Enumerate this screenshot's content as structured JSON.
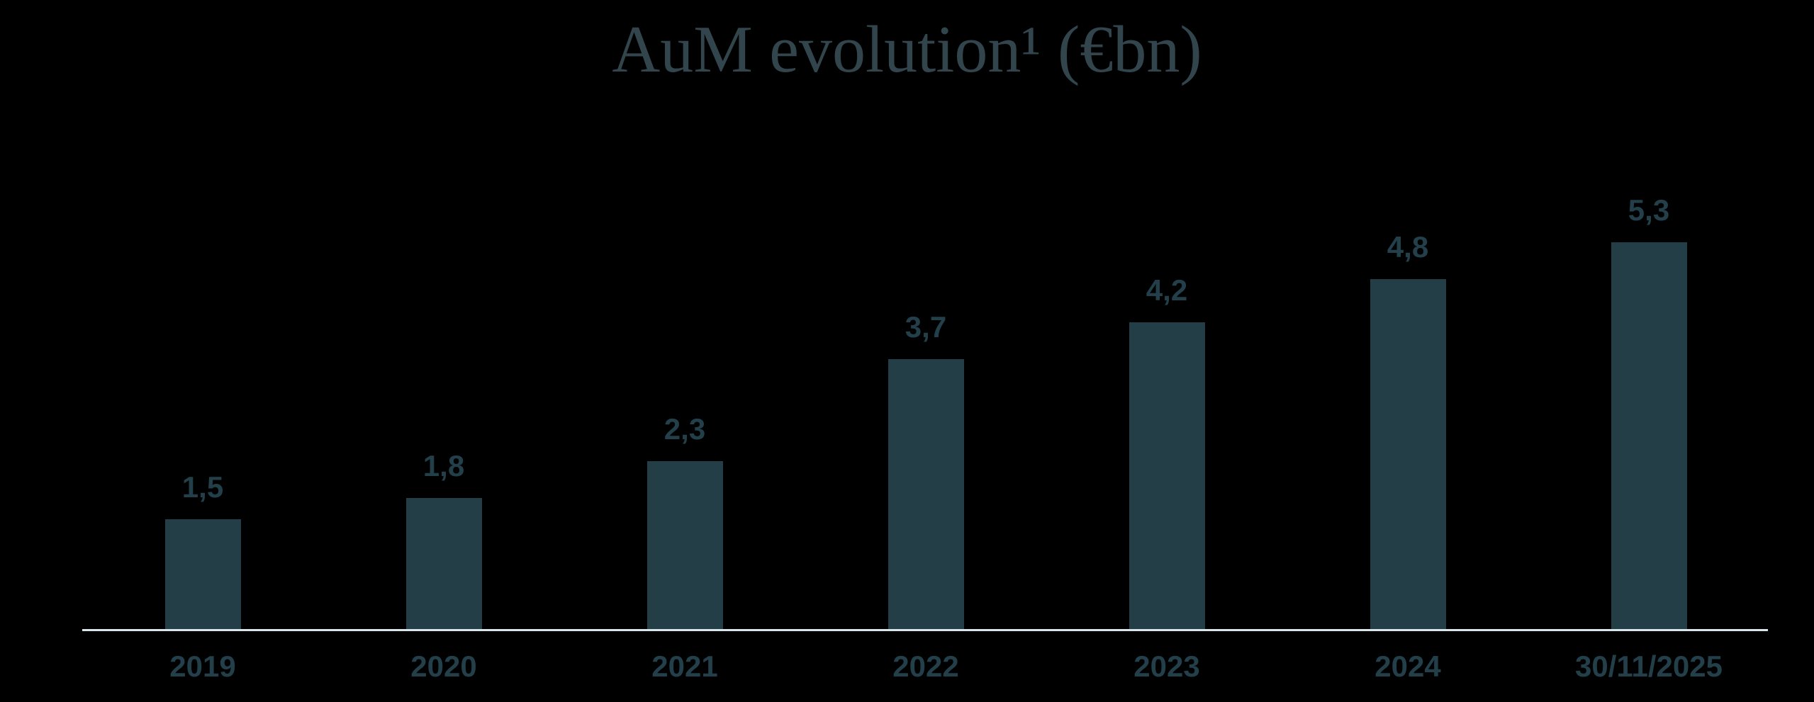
{
  "chart_data": {
    "type": "bar",
    "title": "AuM evolution¹ (€bn)",
    "xlabel": "",
    "ylabel": "",
    "unit": "€bn",
    "decimal_separator": ",",
    "categories": [
      "2019",
      "2020",
      "2021",
      "2022",
      "2023",
      "2024",
      "30/11/2025"
    ],
    "values": [
      1.5,
      1.8,
      2.3,
      3.7,
      4.2,
      4.8,
      5.3
    ],
    "value_labels": [
      "1,5",
      "1,8",
      "2,3",
      "3,7",
      "4,2",
      "4,8",
      "5,3"
    ],
    "ylim": [
      0,
      5.8
    ],
    "grid": false,
    "legend": false,
    "axes_shown": [
      "x"
    ],
    "colors": {
      "background": "#000000",
      "bar": "#243E48",
      "title": "#32454D",
      "data_label": "#223F4A",
      "tick_label": "#223F4A",
      "axis_line": "#D8E6EB"
    }
  }
}
